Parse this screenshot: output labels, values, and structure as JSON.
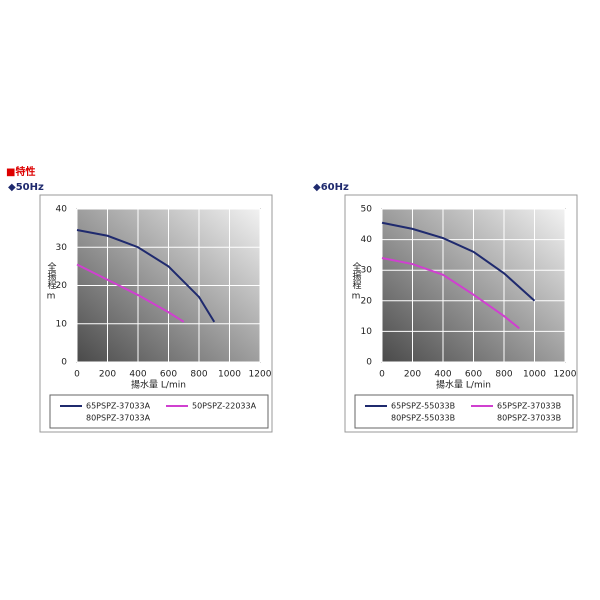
{
  "section_title": "■特性",
  "chart_data": [
    {
      "type": "line",
      "title": "◆50Hz",
      "x_label": "揚水量 L/min",
      "y_label": "全揚程",
      "y_unit": "m",
      "xlim": [
        0,
        1200
      ],
      "xticks": [
        0,
        200,
        400,
        600,
        800,
        1000,
        1200
      ],
      "ylim": [
        0,
        40
      ],
      "yticks": [
        0,
        10,
        20,
        30,
        40
      ],
      "grid": true,
      "series": [
        {
          "names": [
            "65PSPZ-37033A",
            "80PSPZ-37033A"
          ],
          "color": "#1f2a6e",
          "x": [
            0,
            200,
            400,
            600,
            800,
            900
          ],
          "values": [
            34.5,
            33,
            30,
            25,
            17,
            10.5
          ]
        },
        {
          "names": [
            "50PSPZ-22033A"
          ],
          "color": "#d040d0",
          "x": [
            0,
            200,
            400,
            600,
            700
          ],
          "values": [
            25.5,
            21.5,
            17.5,
            13,
            10.5
          ]
        }
      ]
    },
    {
      "type": "line",
      "title": "◆60Hz",
      "x_label": "揚水量 L/min",
      "y_label": "全揚程",
      "y_unit": "m",
      "xlim": [
        0,
        1200
      ],
      "xticks": [
        0,
        200,
        400,
        600,
        800,
        1000,
        1200
      ],
      "ylim": [
        0,
        50
      ],
      "yticks": [
        0,
        10,
        20,
        30,
        40,
        50
      ],
      "grid": true,
      "series": [
        {
          "names": [
            "65PSPZ-55033B",
            "80PSPZ-55033B"
          ],
          "color": "#1f2a6e",
          "x": [
            0,
            200,
            400,
            600,
            800,
            1000
          ],
          "values": [
            45.5,
            43.5,
            40.5,
            36,
            29,
            20
          ]
        },
        {
          "names": [
            "65PSPZ-37033B",
            "80PSPZ-37033B"
          ],
          "color": "#d040d0",
          "x": [
            0,
            200,
            400,
            600,
            800,
            900
          ],
          "values": [
            34,
            32,
            28.5,
            22,
            15,
            11
          ]
        }
      ]
    }
  ]
}
